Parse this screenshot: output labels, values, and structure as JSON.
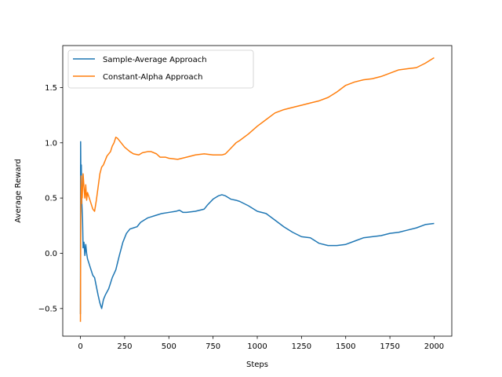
{
  "chart_data": {
    "type": "line",
    "xlabel": "Steps",
    "ylabel": "Average Reward",
    "xlim": [
      -100,
      2100
    ],
    "ylim": [
      -0.75,
      1.88
    ],
    "xticks": [
      0,
      250,
      500,
      750,
      1000,
      1250,
      1500,
      1750,
      2000
    ],
    "xtick_labels": [
      "0",
      "250",
      "500",
      "750",
      "1000",
      "1250",
      "1500",
      "1750",
      "2000"
    ],
    "yticks": [
      -0.5,
      0.0,
      0.5,
      1.0,
      1.5
    ],
    "ytick_labels": [
      "−0.5",
      "0.0",
      "0.5",
      "1.0",
      "1.5"
    ],
    "grid": false,
    "legend_position": "upper-left",
    "series": [
      {
        "name": "Sample-Average Approach",
        "color": "#1f77b4",
        "points": [
          [
            0,
            -0.55
          ],
          [
            1,
            1.01
          ],
          [
            3,
            0.6
          ],
          [
            5,
            0.8
          ],
          [
            8,
            0.45
          ],
          [
            12,
            0.3
          ],
          [
            15,
            0.05
          ],
          [
            20,
            0.1
          ],
          [
            25,
            -0.02
          ],
          [
            30,
            0.08
          ],
          [
            35,
            0.0
          ],
          [
            40,
            -0.05
          ],
          [
            50,
            -0.1
          ],
          [
            60,
            -0.15
          ],
          [
            70,
            -0.2
          ],
          [
            80,
            -0.22
          ],
          [
            90,
            -0.3
          ],
          [
            100,
            -0.38
          ],
          [
            110,
            -0.45
          ],
          [
            120,
            -0.5
          ],
          [
            130,
            -0.42
          ],
          [
            140,
            -0.38
          ],
          [
            160,
            -0.32
          ],
          [
            180,
            -0.22
          ],
          [
            200,
            -0.15
          ],
          [
            220,
            -0.02
          ],
          [
            240,
            0.1
          ],
          [
            260,
            0.18
          ],
          [
            280,
            0.22
          ],
          [
            300,
            0.23
          ],
          [
            320,
            0.24
          ],
          [
            340,
            0.28
          ],
          [
            360,
            0.3
          ],
          [
            380,
            0.32
          ],
          [
            400,
            0.33
          ],
          [
            420,
            0.34
          ],
          [
            440,
            0.35
          ],
          [
            460,
            0.36
          ],
          [
            500,
            0.37
          ],
          [
            540,
            0.38
          ],
          [
            560,
            0.39
          ],
          [
            580,
            0.37
          ],
          [
            600,
            0.37
          ],
          [
            650,
            0.38
          ],
          [
            700,
            0.4
          ],
          [
            720,
            0.44
          ],
          [
            750,
            0.49
          ],
          [
            780,
            0.52
          ],
          [
            800,
            0.53
          ],
          [
            820,
            0.52
          ],
          [
            850,
            0.49
          ],
          [
            880,
            0.48
          ],
          [
            900,
            0.47
          ],
          [
            950,
            0.43
          ],
          [
            1000,
            0.38
          ],
          [
            1050,
            0.36
          ],
          [
            1100,
            0.3
          ],
          [
            1150,
            0.24
          ],
          [
            1200,
            0.19
          ],
          [
            1250,
            0.15
          ],
          [
            1300,
            0.14
          ],
          [
            1350,
            0.09
          ],
          [
            1400,
            0.07
          ],
          [
            1450,
            0.07
          ],
          [
            1500,
            0.08
          ],
          [
            1550,
            0.11
          ],
          [
            1600,
            0.14
          ],
          [
            1650,
            0.15
          ],
          [
            1700,
            0.16
          ],
          [
            1750,
            0.18
          ],
          [
            1800,
            0.19
          ],
          [
            1850,
            0.21
          ],
          [
            1900,
            0.23
          ],
          [
            1950,
            0.26
          ],
          [
            2000,
            0.27
          ]
        ]
      },
      {
        "name": "Constant-Alpha Approach",
        "color": "#ff7f0e",
        "points": [
          [
            0,
            -0.62
          ],
          [
            2,
            0.35
          ],
          [
            4,
            0.7
          ],
          [
            6,
            0.45
          ],
          [
            8,
            0.6
          ],
          [
            10,
            0.5
          ],
          [
            15,
            0.72
          ],
          [
            20,
            0.6
          ],
          [
            25,
            0.5
          ],
          [
            30,
            0.62
          ],
          [
            35,
            0.48
          ],
          [
            40,
            0.55
          ],
          [
            50,
            0.5
          ],
          [
            60,
            0.45
          ],
          [
            70,
            0.4
          ],
          [
            80,
            0.38
          ],
          [
            90,
            0.48
          ],
          [
            100,
            0.6
          ],
          [
            110,
            0.72
          ],
          [
            120,
            0.78
          ],
          [
            130,
            0.8
          ],
          [
            150,
            0.88
          ],
          [
            170,
            0.92
          ],
          [
            180,
            0.97
          ],
          [
            190,
            1.0
          ],
          [
            200,
            1.05
          ],
          [
            210,
            1.04
          ],
          [
            230,
            1.0
          ],
          [
            250,
            0.96
          ],
          [
            280,
            0.92
          ],
          [
            300,
            0.9
          ],
          [
            330,
            0.89
          ],
          [
            350,
            0.91
          ],
          [
            380,
            0.92
          ],
          [
            400,
            0.92
          ],
          [
            430,
            0.9
          ],
          [
            450,
            0.87
          ],
          [
            480,
            0.87
          ],
          [
            500,
            0.86
          ],
          [
            550,
            0.85
          ],
          [
            600,
            0.87
          ],
          [
            650,
            0.89
          ],
          [
            700,
            0.9
          ],
          [
            750,
            0.89
          ],
          [
            800,
            0.89
          ],
          [
            820,
            0.9
          ],
          [
            850,
            0.95
          ],
          [
            880,
            1.0
          ],
          [
            900,
            1.02
          ],
          [
            950,
            1.08
          ],
          [
            1000,
            1.15
          ],
          [
            1050,
            1.21
          ],
          [
            1100,
            1.27
          ],
          [
            1150,
            1.3
          ],
          [
            1200,
            1.32
          ],
          [
            1250,
            1.34
          ],
          [
            1300,
            1.36
          ],
          [
            1350,
            1.38
          ],
          [
            1400,
            1.41
          ],
          [
            1450,
            1.46
          ],
          [
            1500,
            1.52
          ],
          [
            1550,
            1.55
          ],
          [
            1600,
            1.57
          ],
          [
            1650,
            1.58
          ],
          [
            1700,
            1.6
          ],
          [
            1750,
            1.63
          ],
          [
            1800,
            1.66
          ],
          [
            1850,
            1.67
          ],
          [
            1900,
            1.68
          ],
          [
            1950,
            1.72
          ],
          [
            2000,
            1.77
          ]
        ]
      }
    ]
  }
}
